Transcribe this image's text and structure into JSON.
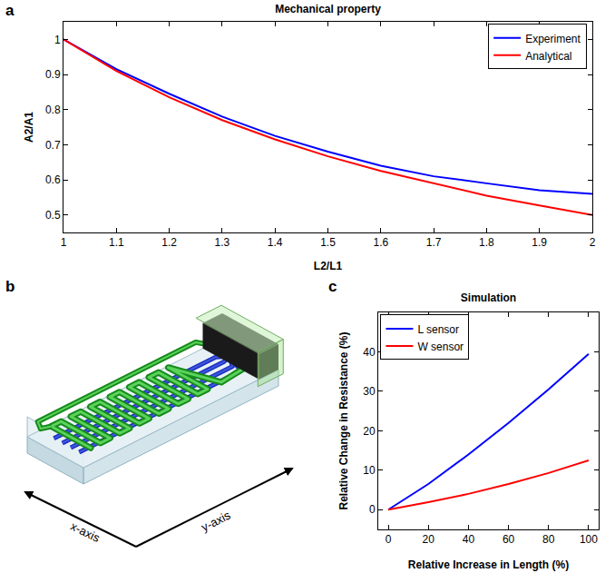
{
  "chart_data": [
    {
      "type": "line",
      "panel_label": "a",
      "title": "Mechanical property",
      "x_label": "L2/L1",
      "y_label": "A2/A1",
      "x": [
        1,
        1.1,
        1.2,
        1.3,
        1.4,
        1.5,
        1.6,
        1.7,
        1.8,
        1.9,
        2
      ],
      "series": [
        {
          "name": "Experiment",
          "color": "#0000ff",
          "values": [
            1,
            0.915,
            0.845,
            0.78,
            0.725,
            0.68,
            0.64,
            0.61,
            0.59,
            0.57,
            0.56
          ]
        },
        {
          "name": "Analytical",
          "color": "#ff0000",
          "values": [
            1,
            0.91,
            0.835,
            0.77,
            0.715,
            0.667,
            0.625,
            0.59,
            0.555,
            0.527,
            0.5
          ]
        }
      ],
      "xlim": [
        1,
        2
      ],
      "xticks": [
        1,
        1.1,
        1.2,
        1.3,
        1.4,
        1.5,
        1.6,
        1.7,
        1.8,
        1.9,
        2
      ],
      "ylim": [
        0.45,
        1.05
      ],
      "yticks": [
        0.5,
        0.6,
        0.7,
        0.8,
        0.9,
        1
      ],
      "grid": false,
      "legend": "upper right"
    },
    {
      "type": "line",
      "panel_label": "c",
      "title": "Simulation",
      "x_label": "Relative Increase in Length (%)",
      "y_label": "Relative Change in Resistance (%)",
      "x": [
        0,
        20,
        40,
        60,
        80,
        100
      ],
      "series": [
        {
          "name": "L sensor",
          "color": "#0000ff",
          "values": [
            0,
            6.5,
            14,
            22,
            30.5,
            39.5
          ]
        },
        {
          "name": "W sensor",
          "color": "#ff0000",
          "values": [
            0,
            1.9,
            4,
            6.5,
            9.3,
            12.5
          ]
        }
      ],
      "xlim": [
        -5,
        105
      ],
      "xticks": [
        0,
        20,
        40,
        60,
        80,
        100
      ],
      "ylim": [
        -5,
        50
      ],
      "yticks": [
        0,
        10,
        20,
        30,
        40
      ],
      "grid": false,
      "legend": "upper left"
    }
  ],
  "diagram": {
    "panel_label": "b",
    "axes": [
      "x-axis",
      "y-axis"
    ]
  }
}
